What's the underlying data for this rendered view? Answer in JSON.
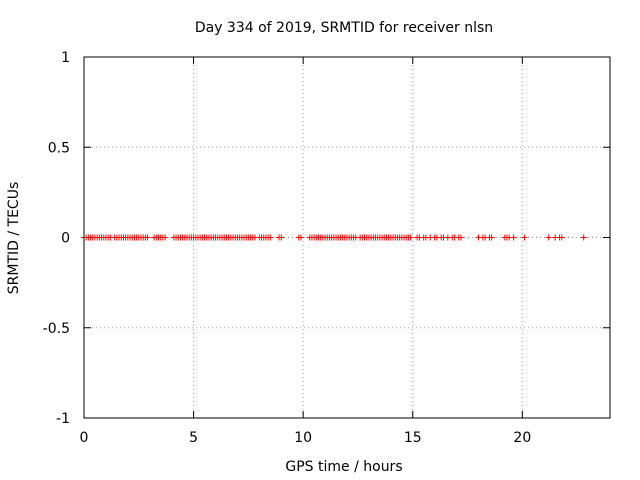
{
  "chart_data": {
    "type": "scatter",
    "title": "Day 334 of 2019, SRMTID for receiver nlsn",
    "xlabel": "GPS time / hours",
    "ylabel": "SRMTID / TECUs",
    "xlim": [
      0,
      24
    ],
    "ylim": [
      -1,
      1
    ],
    "grid": true,
    "x_ticks": [
      0,
      5,
      10,
      15,
      20
    ],
    "x_tick_labels": [
      "0",
      "5",
      "10",
      "15",
      "20"
    ],
    "y_ticks": [
      1,
      0.5,
      0,
      -0.5,
      -1
    ],
    "y_tick_labels": [
      "1",
      "0.5",
      "0",
      "-0.5",
      "-1"
    ],
    "marker_color": "#ff0000",
    "series": [
      {
        "name": "SRMTID",
        "marker": "plus",
        "y_value": 0,
        "x": [
          0.0,
          0.1,
          0.2,
          0.3,
          0.4,
          0.5,
          0.6,
          0.7,
          0.8,
          0.9,
          1.0,
          1.1,
          1.2,
          1.4,
          1.5,
          1.6,
          1.7,
          1.8,
          1.9,
          2.0,
          2.1,
          2.2,
          2.3,
          2.4,
          2.5,
          2.6,
          2.7,
          2.8,
          2.9,
          3.2,
          3.3,
          3.4,
          3.5,
          3.6,
          3.7,
          4.1,
          4.2,
          4.3,
          4.4,
          4.5,
          4.6,
          4.7,
          4.8,
          4.9,
          5.0,
          5.1,
          5.2,
          5.3,
          5.4,
          5.5,
          5.6,
          5.7,
          5.8,
          5.9,
          6.0,
          6.1,
          6.2,
          6.3,
          6.4,
          6.5,
          6.6,
          6.7,
          6.8,
          6.9,
          7.0,
          7.1,
          7.2,
          7.3,
          7.4,
          7.5,
          7.6,
          7.7,
          7.8,
          8.0,
          8.1,
          8.2,
          8.3,
          8.4,
          8.5,
          8.9,
          9.0,
          9.8,
          9.9,
          10.3,
          10.4,
          10.5,
          10.6,
          10.7,
          10.8,
          10.9,
          11.0,
          11.1,
          11.2,
          11.3,
          11.4,
          11.5,
          11.6,
          11.7,
          11.8,
          11.9,
          12.0,
          12.1,
          12.2,
          12.3,
          12.4,
          12.6,
          12.7,
          12.8,
          12.9,
          13.0,
          13.1,
          13.2,
          13.3,
          13.4,
          13.5,
          13.6,
          13.7,
          13.8,
          13.9,
          14.0,
          14.1,
          14.2,
          14.3,
          14.4,
          14.5,
          14.6,
          14.7,
          14.8,
          14.9,
          15.2,
          15.3,
          15.5,
          15.6,
          15.8,
          16.0,
          16.1,
          16.3,
          16.4,
          16.6,
          16.8,
          16.9,
          17.1,
          17.2,
          18.0,
          18.2,
          18.3,
          18.5,
          18.6,
          19.2,
          19.3,
          19.4,
          19.6,
          20.1,
          21.2,
          21.5,
          21.7,
          21.8,
          22.8
        ]
      }
    ]
  }
}
